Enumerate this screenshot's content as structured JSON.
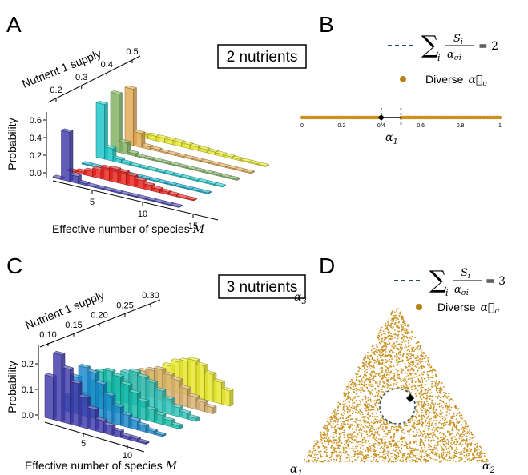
{
  "panels": {
    "A": {
      "letter": "A",
      "nutrients_label": "2 nutrients",
      "depth_axis_label": "Nutrient 1 supply",
      "depth_ticks": [
        "0.2",
        "0.3",
        "0.4",
        "0.5"
      ],
      "y_axis_label": "Probability",
      "y_ticks": [
        "0.0",
        "0.2",
        "0.4",
        "0.6"
      ],
      "x_axis_label": "Effective number of species",
      "x_axis_symbol": "M",
      "x_ticks": [
        "5",
        "10",
        "15"
      ]
    },
    "B": {
      "letter": "B",
      "legend_sum_symbol": "∑",
      "legend_sum_index": "i",
      "legend_frac_num": "S",
      "legend_frac_num_sub": "i",
      "legend_frac_den": "α",
      "legend_frac_den_sub": "σi",
      "legend_rhs": "= 2",
      "legend_dot_label": "Diverse",
      "legend_dot_symbol": "α⃗",
      "legend_dot_symbol_sub": "σ",
      "axis_ticks": [
        "0",
        "0.2",
        "0.4",
        "0.6",
        "0.8",
        "1"
      ],
      "axis_symbol": "α",
      "axis_symbol_sub": "1"
    },
    "C": {
      "letter": "C",
      "nutrients_label": "3 nutrients",
      "depth_axis_label": "Nutrient 1 supply",
      "depth_ticks": [
        "0.10",
        "0.15",
        "0.20",
        "0.25",
        "0.30"
      ],
      "y_axis_label": "Probability",
      "y_ticks": [
        "0.0",
        "0.1",
        "0.2"
      ],
      "x_axis_label": "Effective number of species",
      "x_axis_symbol": "M",
      "x_ticks": [
        "5",
        "10"
      ]
    },
    "D": {
      "letter": "D",
      "legend_sum_symbol": "∑",
      "legend_sum_index": "i",
      "legend_frac_num": "S",
      "legend_frac_num_sub": "i",
      "legend_frac_den": "α",
      "legend_frac_den_sub": "σi",
      "legend_rhs": "= 3",
      "legend_dot_label": "Diverse",
      "legend_dot_symbol": "α⃗",
      "legend_dot_symbol_sub": "σ",
      "vertex_symbol": "α",
      "vertex_top_sub": "3",
      "vertex_left_sub": "1",
      "vertex_right_sub": "2"
    }
  },
  "colors": {
    "dot": "#c9901f",
    "dashed": "#2b4f6e",
    "panel_a_series": [
      "#3d3aa8",
      "#e8201c",
      "#0aa9c9",
      "#17c4c4",
      "#7fb060",
      "#e0a850",
      "#e7e62a"
    ],
    "panel_c_series": [
      "#3d3aa8",
      "#1886c9",
      "#15b8a6",
      "#2dc0b8",
      "#d8b070",
      "#e7e62a"
    ]
  },
  "chart_data": [
    {
      "panel": "A",
      "type": "bar",
      "title": "2 nutrients",
      "xlabel": "Effective number of species M",
      "ylabel": "Probability",
      "zlabel": "Nutrient 1 supply",
      "ylim": [
        0,
        0.7
      ],
      "x": [
        1,
        2,
        3,
        4,
        5,
        6,
        7,
        8,
        9,
        10,
        11,
        12,
        13,
        14,
        15
      ],
      "series": [
        {
          "values": [
            0.01,
            0.56,
            0.08,
            0.02,
            0.01,
            0,
            0,
            0,
            0,
            0,
            0,
            0,
            0,
            0,
            0
          ]
        },
        {
          "values": [
            0.01,
            0.03,
            0.06,
            0.1,
            0.14,
            0.15,
            0.14,
            0.12,
            0.09,
            0.06,
            0.04,
            0.03,
            0.02,
            0.01,
            0.01
          ]
        },
        {
          "values": [
            0.01,
            0.01,
            0.01,
            0.01,
            0.01,
            0.01,
            0.01,
            0.01,
            0.01,
            0.01,
            0.01,
            0.01,
            0.01,
            0.01,
            0.01
          ]
        },
        {
          "values": [
            0.62,
            0.14,
            0.04,
            0.02,
            0.01,
            0.01,
            0.01,
            0.01,
            0.01,
            0.01,
            0.01,
            0.01,
            0.01,
            0.01,
            0.01
          ]
        },
        {
          "values": [
            0.66,
            0.13,
            0.03,
            0.01,
            0.01,
            0.01,
            0.01,
            0.01,
            0.01,
            0.01,
            0.01,
            0.01,
            0.01,
            0.01,
            0.01
          ]
        },
        {
          "values": [
            0.64,
            0.16,
            0.03,
            0.02,
            0.01,
            0.01,
            0.01,
            0.01,
            0.01,
            0.01,
            0.01,
            0.01,
            0.01,
            0.01,
            0.01
          ]
        },
        {
          "values": [
            0.04,
            0.05,
            0.05,
            0.05,
            0.05,
            0.045,
            0.04,
            0.035,
            0.03,
            0.025,
            0.02,
            0.015,
            0.01,
            0.01,
            0.005
          ]
        }
      ]
    },
    {
      "panel": "C",
      "type": "bar",
      "title": "3 nutrients",
      "xlabel": "Effective number of species M",
      "ylabel": "Probability",
      "zlabel": "Nutrient 1 supply",
      "ylim": [
        0,
        0.25
      ],
      "x": [
        1,
        2,
        3,
        4,
        5,
        6,
        7,
        8,
        9,
        10,
        11,
        12
      ],
      "series": [
        {
          "values": [
            0.14,
            0.22,
            0.18,
            0.14,
            0.1,
            0.07,
            0.04,
            0.03,
            0.02,
            0.01,
            0.01,
            0.005
          ]
        },
        {
          "values": [
            0.05,
            0.12,
            0.16,
            0.15,
            0.12,
            0.09,
            0.06,
            0.04,
            0.03,
            0.02,
            0.01,
            0.005
          ]
        },
        {
          "values": [
            0.03,
            0.08,
            0.12,
            0.13,
            0.12,
            0.1,
            0.08,
            0.06,
            0.04,
            0.03,
            0.02,
            0.01
          ]
        },
        {
          "values": [
            0.02,
            0.05,
            0.08,
            0.1,
            0.11,
            0.1,
            0.09,
            0.07,
            0.05,
            0.03,
            0.02,
            0.01
          ]
        },
        {
          "values": [
            0.01,
            0.03,
            0.06,
            0.08,
            0.09,
            0.1,
            0.09,
            0.08,
            0.06,
            0.04,
            0.03,
            0.02
          ]
        },
        {
          "values": [
            0.01,
            0.02,
            0.04,
            0.06,
            0.08,
            0.1,
            0.11,
            0.12,
            0.11,
            0.09,
            0.07,
            0.05
          ]
        }
      ]
    },
    {
      "panel": "B",
      "type": "scatter",
      "xlim": [
        0,
        1
      ],
      "x_ticks": [
        0,
        0.2,
        0.4,
        0.6,
        0.8,
        1
      ],
      "dashed_markers": [
        0.4,
        0.5
      ],
      "point_marker": 0.4,
      "diverse_range": [
        [
          0,
          0.4
        ],
        [
          0.5,
          1
        ]
      ]
    },
    {
      "panel": "D",
      "type": "scatter",
      "simplex_vertices": [
        "α1",
        "α2",
        "α3"
      ],
      "dashed_circle": "Σ Si/ασi = 3",
      "diverse_fill": "uniform across simplex except inside dashed circle"
    }
  ]
}
